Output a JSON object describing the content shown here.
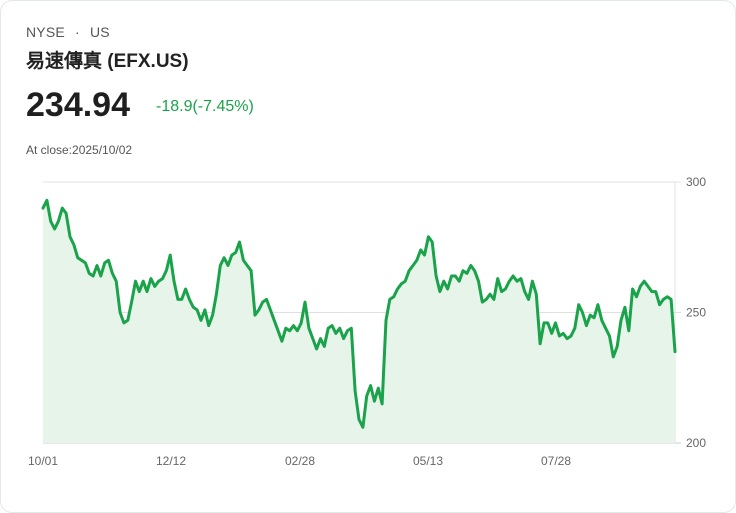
{
  "header": {
    "exchange": "NYSE",
    "separator": "·",
    "market": "US",
    "title": "易速傳真 (EFX.US)",
    "price": "234.94",
    "change": "-18.9(-7.45%)",
    "close_label": "At close:2025/10/02"
  },
  "colors": {
    "line": "#1aa34a",
    "fill": "#e6f4ea",
    "change": "#1aa34a",
    "grid": "#e0e0e0"
  },
  "chart_data": {
    "type": "area",
    "title": "易速傳真 (EFX.US)",
    "xlabel": "",
    "ylabel": "",
    "ylim": [
      200,
      300
    ],
    "yticks": [
      200,
      250,
      300
    ],
    "xtick_labels": [
      "10/01",
      "12/12",
      "02/28",
      "05/13",
      "07/28"
    ],
    "grid": true,
    "y_axis_position": "right",
    "series": [
      {
        "name": "EFX.US",
        "values": [
          290,
          293,
          285,
          282,
          285,
          290,
          288,
          279,
          276,
          271,
          270,
          269,
          265,
          264,
          268,
          264,
          269,
          270,
          265,
          262,
          250,
          246,
          247,
          254,
          262,
          258,
          262,
          258,
          263,
          260,
          262,
          263,
          266,
          272,
          262,
          255,
          255,
          259,
          255,
          252,
          251,
          247,
          251,
          245,
          249,
          257,
          268,
          271,
          268,
          272,
          273,
          277,
          270,
          268,
          266,
          249,
          251,
          254,
          255,
          251,
          247,
          243,
          239,
          244,
          243,
          245,
          243,
          246,
          254,
          244,
          240,
          236,
          240,
          237,
          244,
          245,
          242,
          244,
          240,
          243,
          244,
          220,
          209,
          206,
          218,
          222,
          216,
          221,
          215,
          247,
          255,
          256,
          259,
          261,
          262,
          266,
          268,
          270,
          274,
          272,
          279,
          277,
          264,
          258,
          262,
          259,
          264,
          264,
          262,
          266,
          265,
          268,
          266,
          262,
          254,
          255,
          257,
          255,
          263,
          258,
          259,
          262,
          264,
          262,
          263,
          258,
          255,
          262,
          257,
          238,
          246,
          246,
          242,
          246,
          241,
          242,
          240,
          241,
          244,
          253,
          250,
          245,
          249,
          248,
          253,
          247,
          244,
          241,
          233,
          237,
          247,
          252,
          243,
          259,
          256,
          260,
          262,
          260,
          258,
          258,
          253,
          255,
          256,
          255,
          235
        ]
      }
    ]
  }
}
